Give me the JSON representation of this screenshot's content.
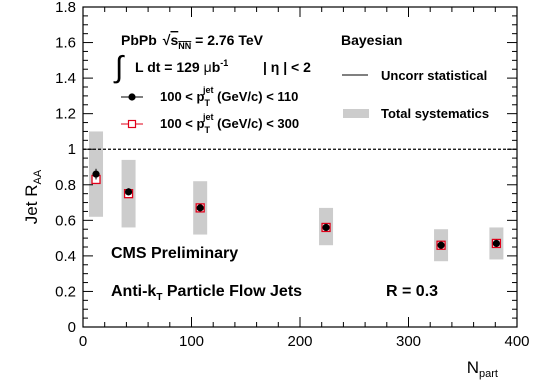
{
  "chart_data": {
    "type": "scatter",
    "ylabel_main": "Jet R",
    "ylabel_sub": "AA",
    "xlabel_main": "N",
    "xlabel_sub": "part",
    "xlim": [
      0,
      400
    ],
    "ylim": [
      0,
      1.8
    ],
    "x_ticks": [
      "0",
      "100",
      "200",
      "300",
      "400"
    ],
    "y_ticks": [
      "0",
      "0.2",
      "0.4",
      "0.6",
      "0.8",
      "1",
      "1.2",
      "1.4",
      "1.6",
      "1.8"
    ],
    "reference_line": 1.0,
    "series": [
      {
        "name": "100 < p_T^jet (GeV/c) < 110",
        "marker": "filled-circle",
        "color": "#000000",
        "x": [
          12,
          42,
          108,
          224,
          330,
          381
        ],
        "y": [
          0.86,
          0.76,
          0.67,
          0.56,
          0.46,
          0.47
        ],
        "stat_err": [
          0.03,
          0.02,
          0.02,
          0.02,
          0.02,
          0.02
        ]
      },
      {
        "name": "100 < p_T^jet (GeV/c) < 300",
        "marker": "open-square",
        "color": "#e0001a",
        "x": [
          12,
          42,
          108,
          224,
          330,
          381
        ],
        "y": [
          0.83,
          0.75,
          0.67,
          0.56,
          0.46,
          0.47
        ],
        "stat_err": [
          0.02,
          0.02,
          0.02,
          0.02,
          0.02,
          0.02
        ]
      }
    ],
    "systematics": {
      "x": [
        12,
        42,
        108,
        224,
        330,
        381
      ],
      "low": [
        0.62,
        0.56,
        0.52,
        0.46,
        0.37,
        0.38
      ],
      "high": [
        1.1,
        0.94,
        0.82,
        0.67,
        0.55,
        0.56
      ],
      "color": "#cccccc"
    },
    "legend": {
      "uncorr": "Uncorr statistical",
      "total_syst": "Total systematics",
      "series1_prefix": "100 < p",
      "series1_suffix": " (GeV/c) < 110",
      "series2_prefix": "100 < p",
      "series2_suffix": " (GeV/c) < 300",
      "sub_T": "T",
      "sup_jet": "jet"
    },
    "annotations": {
      "collision": "PbPb",
      "sqrt": "s",
      "sqrt_sub": "NN",
      "energy": " = 2.76 TeV",
      "lumi_prefix": "L dt = 129 ",
      "lumi_mu": "μ",
      "lumi_unit": "b",
      "lumi_exp": "-1",
      "eta_cut": "| η | < 2",
      "method": "Bayesian",
      "preliminary": "CMS Preliminary",
      "algo_prefix": "Anti-k",
      "algo_sub": "T",
      "algo_suffix": " Particle Flow Jets",
      "radius": "R = 0.3"
    }
  }
}
